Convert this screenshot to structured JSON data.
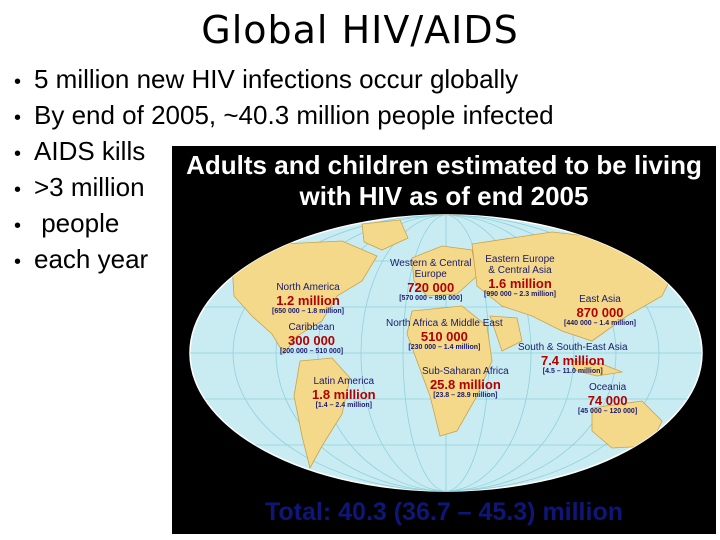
{
  "title": "Global HIV/AIDS",
  "bullets": [
    "5 million new HIV infections occur globally",
    "By end of 2005, ~40.3 million people infected",
    "AIDS kills",
    ">3 million",
    " people",
    "each year"
  ],
  "map": {
    "title_line1": "Adults and children estimated to be living",
    "title_line2": "with HIV as of end 2005",
    "regions": {
      "wce": {
        "name1": "Western & Central",
        "name2": "Europe",
        "value": "720 000",
        "range": "[570 000 – 890 000]"
      },
      "eeca": {
        "name1": "Eastern Europe",
        "name2": "& Central Asia",
        "value": "1.6 million",
        "range": "[990 000 – 2.3 million]"
      },
      "na": {
        "name": "North America",
        "value": "1.2 million",
        "range": "[650 000 – 1.8 million]"
      },
      "ea": {
        "name": "East Asia",
        "value": "870 000",
        "range": "[440 000 – 1.4 million]"
      },
      "car": {
        "name": "Caribbean",
        "value": "300 000",
        "range": "[200 000 – 510 000]"
      },
      "name": {
        "name": "North Africa & Middle East",
        "value": "510 000",
        "range": "[230 000 – 1.4 million]"
      },
      "sea": {
        "name": "South & South-East Asia",
        "value": "7.4 million",
        "range": "[4.5 – 11.0 million]"
      },
      "la": {
        "name": "Latin America",
        "value": "1.8 million",
        "range": "[1.4 – 2.4 million]"
      },
      "ssa": {
        "name": "Sub-Saharan Africa",
        "value": "25.8 million",
        "range": "[23.8 – 28.9 million]"
      },
      "oc": {
        "name": "Oceania",
        "value": "74 000",
        "range": "[45 000 – 120 000]"
      }
    },
    "total": "Total: 40.3 (36.7 – 45.3) million",
    "colors": {
      "ocean": "#c9ecf3",
      "land": "#f5d98a",
      "graticule": "#8fd0dc",
      "value": "#b20000",
      "region": "#1a1a6e"
    }
  }
}
